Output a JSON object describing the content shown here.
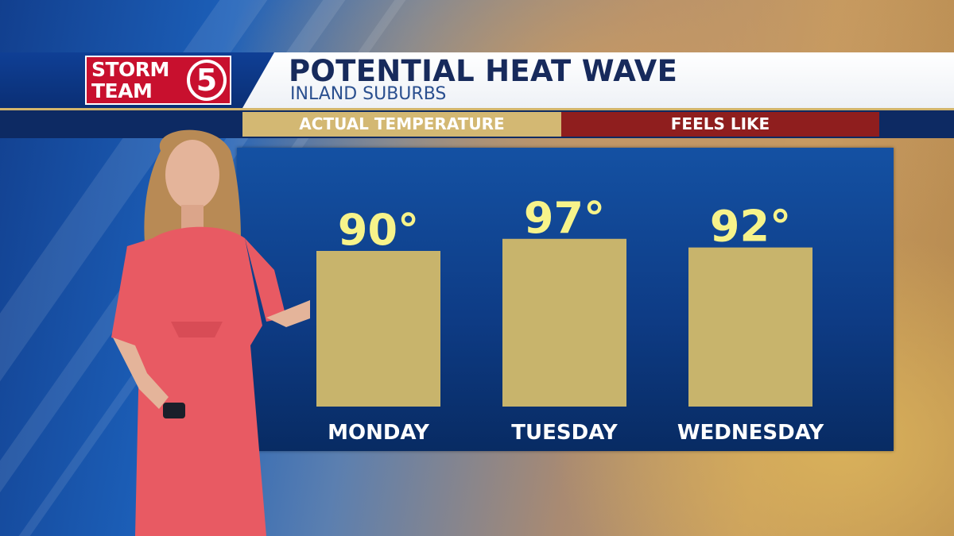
{
  "logo": {
    "line1": "STORM",
    "line2": "TEAM",
    "number": "5"
  },
  "header": {
    "title": "POTENTIAL HEAT WAVE",
    "subtitle": "INLAND SUBURBS"
  },
  "legend": {
    "actual_label": "ACTUAL TEMPERATURE",
    "feels_label": "FEELS LIKE"
  },
  "colors": {
    "bar": "#c8b46c",
    "value_text": "#f7f38a",
    "panel": "#0e3c86",
    "feels_like": "#8f1e1e",
    "logo_red": "#c8102e"
  },
  "chart_data": {
    "type": "bar",
    "categories": [
      "MONDAY",
      "TUESDAY",
      "WEDNESDAY"
    ],
    "values": [
      90,
      97,
      92
    ],
    "value_labels": [
      "90°",
      "97°",
      "92°"
    ],
    "title": "POTENTIAL HEAT WAVE",
    "subtitle": "INLAND SUBURBS",
    "xlabel": "",
    "ylabel": "",
    "unit": "°",
    "grid": false,
    "legend": "top"
  }
}
